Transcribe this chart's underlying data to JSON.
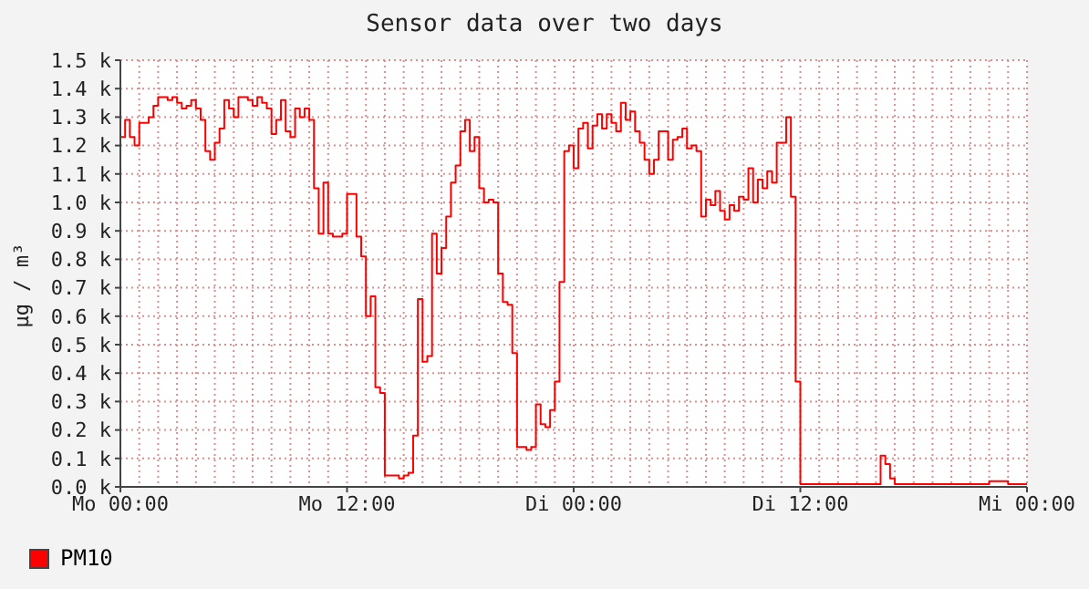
{
  "chart_data": {
    "type": "step",
    "title": "Sensor data over two days",
    "ylabel": "µg / m³",
    "categories": [
      "Mo 00:00",
      null,
      null,
      null,
      null,
      null,
      null,
      null,
      null,
      null,
      null,
      null,
      null,
      null,
      null,
      null,
      null,
      null,
      null,
      null,
      null,
      null,
      null,
      null,
      null,
      null,
      null,
      null,
      null,
      null,
      null,
      null,
      null,
      null,
      null,
      null,
      null,
      null,
      null,
      null,
      null,
      null,
      null,
      null,
      null,
      null,
      null,
      null,
      "Mo 12:00",
      null,
      null,
      null,
      null,
      null,
      null,
      null,
      null,
      null,
      null,
      null,
      null,
      null,
      null,
      null,
      null,
      null,
      null,
      null,
      null,
      null,
      null,
      null,
      null,
      null,
      null,
      null,
      null,
      null,
      null,
      null,
      null,
      null,
      null,
      null,
      null,
      null,
      null,
      null,
      null,
      null,
      null,
      null,
      null,
      null,
      null,
      null,
      "Di 00:00",
      null,
      null,
      null,
      null,
      null,
      null,
      null,
      null,
      null,
      null,
      null,
      null,
      null,
      null,
      null,
      null,
      null,
      null,
      null,
      null,
      null,
      null,
      null,
      null,
      null,
      null,
      null,
      null,
      null,
      null,
      null,
      null,
      null,
      null,
      null,
      null,
      null,
      null,
      null,
      null,
      null,
      null,
      null,
      null,
      null,
      null,
      null,
      "Di 12:00",
      null,
      null,
      null,
      null,
      null,
      null,
      null,
      null,
      null,
      null,
      null,
      null,
      null,
      null,
      null,
      null,
      null,
      null,
      null,
      null,
      null,
      null,
      null,
      null,
      null,
      null,
      null,
      null,
      null,
      null,
      null,
      null,
      null,
      null,
      null,
      null,
      null,
      null,
      null,
      null,
      null,
      null,
      null,
      null,
      null,
      null,
      null,
      "Mi 00:00"
    ],
    "ylim": [
      0,
      1500
    ],
    "yticks": [
      {
        "value": 0,
        "label": "0.0 k"
      },
      {
        "value": 100,
        "label": "0.1 k"
      },
      {
        "value": 200,
        "label": "0.2 k"
      },
      {
        "value": 300,
        "label": "0.3 k"
      },
      {
        "value": 400,
        "label": "0.4 k"
      },
      {
        "value": 500,
        "label": "0.5 k"
      },
      {
        "value": 600,
        "label": "0.6 k"
      },
      {
        "value": 700,
        "label": "0.7 k"
      },
      {
        "value": 800,
        "label": "0.8 k"
      },
      {
        "value": 900,
        "label": "0.9 k"
      },
      {
        "value": 1000,
        "label": "1.0 k"
      },
      {
        "value": 1100,
        "label": "1.1 k"
      },
      {
        "value": 1200,
        "label": "1.2 k"
      },
      {
        "value": 1300,
        "label": "1.3 k"
      },
      {
        "value": 1400,
        "label": "1.4 k"
      },
      {
        "value": 1500,
        "label": "1.5 k"
      }
    ],
    "grid": true,
    "legend": "bottom left",
    "line_style": "solid",
    "series": [
      {
        "name": "PM10",
        "color": "#ff0000",
        "values": [
          1230,
          1290,
          1230,
          1200,
          1280,
          1280,
          1300,
          1340,
          1370,
          1370,
          1360,
          1370,
          1350,
          1330,
          1340,
          1360,
          1330,
          1290,
          1180,
          1150,
          1210,
          1260,
          1360,
          1330,
          1300,
          1370,
          1370,
          1360,
          1340,
          1370,
          1350,
          1330,
          1240,
          1290,
          1360,
          1250,
          1230,
          1330,
          1300,
          1330,
          1290,
          1050,
          890,
          1070,
          890,
          880,
          880,
          890,
          1030,
          1030,
          880,
          810,
          600,
          670,
          350,
          330,
          40,
          40,
          40,
          30,
          40,
          50,
          180,
          660,
          440,
          460,
          890,
          750,
          840,
          950,
          1070,
          1130,
          1250,
          1290,
          1180,
          1230,
          1050,
          1000,
          1010,
          1000,
          750,
          650,
          640,
          470,
          140,
          140,
          130,
          140,
          290,
          220,
          210,
          270,
          370,
          720,
          1180,
          1200,
          1120,
          1260,
          1280,
          1190,
          1270,
          1310,
          1260,
          1310,
          1280,
          1250,
          1350,
          1290,
          1320,
          1250,
          1210,
          1150,
          1100,
          1150,
          1250,
          1250,
          1150,
          1220,
          1230,
          1260,
          1190,
          1200,
          1180,
          950,
          1010,
          990,
          1040,
          970,
          940,
          990,
          970,
          1020,
          1010,
          1120,
          1000,
          1080,
          1050,
          1110,
          1070,
          1210,
          1210,
          1300,
          1020,
          370,
          10,
          10,
          10,
          10,
          10,
          10,
          10,
          10,
          10,
          10,
          10,
          10,
          10,
          10,
          10,
          10,
          10,
          110,
          80,
          30,
          10,
          10,
          10,
          10,
          10,
          10,
          10,
          10,
          10,
          10,
          10,
          10,
          10,
          10,
          10,
          10,
          10,
          10,
          10,
          10,
          20,
          20,
          20,
          20,
          10,
          10,
          10,
          10,
          10
        ]
      }
    ]
  }
}
